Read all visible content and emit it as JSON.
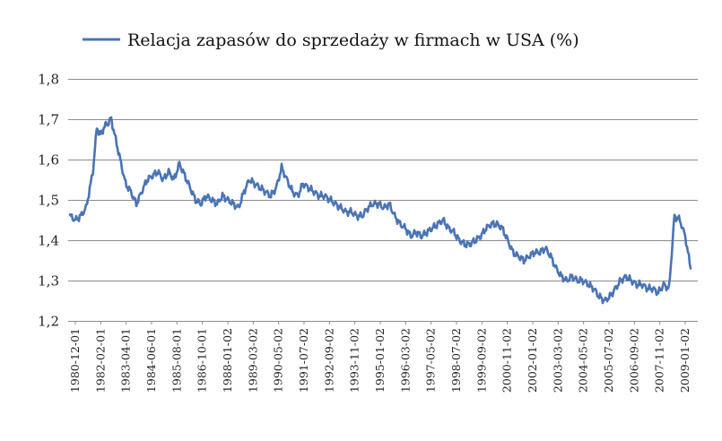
{
  "chart_data": {
    "type": "line",
    "title": "",
    "xlabel": "",
    "ylabel": "",
    "ylim": [
      1.2,
      1.8
    ],
    "yticks": [
      "1,2",
      "1,3",
      "1,4",
      "1,5",
      "1,6",
      "1,7",
      "1,8"
    ],
    "grid": true,
    "legend_position": "top",
    "xtick_labels": [
      "1980-12-01",
      "1982-02-01",
      "1983-04-01",
      "1984-06-01",
      "1985-08-01",
      "1986-10-01",
      "1988-01-02",
      "1989-03-02",
      "1990-05-02",
      "1991-07-02",
      "1992-09-02",
      "1993-11-02",
      "1995-01-02",
      "1996-03-02",
      "1997-05-02",
      "1998-07-02",
      "1999-09-02",
      "2000-11-02",
      "2002-01-02",
      "2003-03-02",
      "2004-05-02",
      "2005-07-02",
      "2006-09-02",
      "2007-11-02",
      "2009-01-02"
    ],
    "series": [
      {
        "name": "Relacja zapasów do sprzedaży w firmach w USA (%)",
        "color": "#4a74b4",
        "x": [
          "1980-12",
          "1981-03",
          "1981-06",
          "1981-09",
          "1981-12",
          "1982-01",
          "1982-03",
          "1982-05",
          "1982-07",
          "1982-09",
          "1982-11",
          "1983-01",
          "1983-04",
          "1983-07",
          "1983-10",
          "1984-01",
          "1984-04",
          "1984-07",
          "1984-10",
          "1985-01",
          "1985-04",
          "1985-07",
          "1985-10",
          "1986-01",
          "1986-04",
          "1986-07",
          "1986-10",
          "1987-01",
          "1987-04",
          "1987-07",
          "1987-10",
          "1988-01",
          "1988-04",
          "1988-07",
          "1988-10",
          "1989-01",
          "1989-04",
          "1989-07",
          "1989-10",
          "1990-01",
          "1990-04",
          "1990-07",
          "1990-10",
          "1991-01",
          "1991-04",
          "1991-07",
          "1991-10",
          "1992-01",
          "1992-04",
          "1992-07",
          "1992-10",
          "1993-01",
          "1993-04",
          "1993-07",
          "1993-10",
          "1994-01",
          "1994-04",
          "1994-07",
          "1994-10",
          "1995-01",
          "1995-04",
          "1995-07",
          "1995-10",
          "1996-01",
          "1996-04",
          "1996-07",
          "1996-10",
          "1997-01",
          "1997-04",
          "1997-07",
          "1997-10",
          "1998-01",
          "1998-04",
          "1998-07",
          "1998-10",
          "1999-01",
          "1999-04",
          "1999-07",
          "1999-10",
          "2000-01",
          "2000-04",
          "2000-07",
          "2000-10",
          "2001-01",
          "2001-04",
          "2001-07",
          "2001-10",
          "2002-01",
          "2002-04",
          "2002-07",
          "2002-10",
          "2003-01",
          "2003-04",
          "2003-07",
          "2003-10",
          "2004-01",
          "2004-04",
          "2004-07",
          "2004-10",
          "2005-01",
          "2005-04",
          "2005-07",
          "2005-10",
          "2006-01",
          "2006-04",
          "2006-07",
          "2006-10",
          "2007-01",
          "2007-04",
          "2007-07",
          "2007-10",
          "2008-01",
          "2008-04",
          "2008-07",
          "2008-10",
          "2009-01",
          "2009-04",
          "2009-07",
          "2009-10"
        ],
        "y": [
          1.46,
          1.45,
          1.46,
          1.48,
          1.55,
          1.58,
          1.68,
          1.66,
          1.68,
          1.69,
          1.7,
          1.66,
          1.6,
          1.54,
          1.52,
          1.49,
          1.52,
          1.55,
          1.56,
          1.57,
          1.55,
          1.57,
          1.55,
          1.59,
          1.56,
          1.53,
          1.5,
          1.49,
          1.51,
          1.5,
          1.49,
          1.51,
          1.5,
          1.49,
          1.48,
          1.52,
          1.55,
          1.54,
          1.53,
          1.52,
          1.51,
          1.53,
          1.58,
          1.55,
          1.52,
          1.51,
          1.54,
          1.53,
          1.52,
          1.51,
          1.51,
          1.5,
          1.49,
          1.48,
          1.47,
          1.47,
          1.46,
          1.46,
          1.48,
          1.49,
          1.49,
          1.48,
          1.49,
          1.46,
          1.44,
          1.43,
          1.41,
          1.42,
          1.41,
          1.42,
          1.43,
          1.44,
          1.45,
          1.43,
          1.42,
          1.4,
          1.39,
          1.39,
          1.4,
          1.41,
          1.43,
          1.44,
          1.44,
          1.43,
          1.4,
          1.37,
          1.36,
          1.35,
          1.36,
          1.37,
          1.37,
          1.38,
          1.36,
          1.33,
          1.31,
          1.3,
          1.31,
          1.3,
          1.3,
          1.29,
          1.28,
          1.26,
          1.25,
          1.26,
          1.28,
          1.3,
          1.31,
          1.3,
          1.29,
          1.29,
          1.28,
          1.28,
          1.27,
          1.29,
          1.28,
          1.46,
          1.45,
          1.41,
          1.33
        ]
      }
    ]
  }
}
